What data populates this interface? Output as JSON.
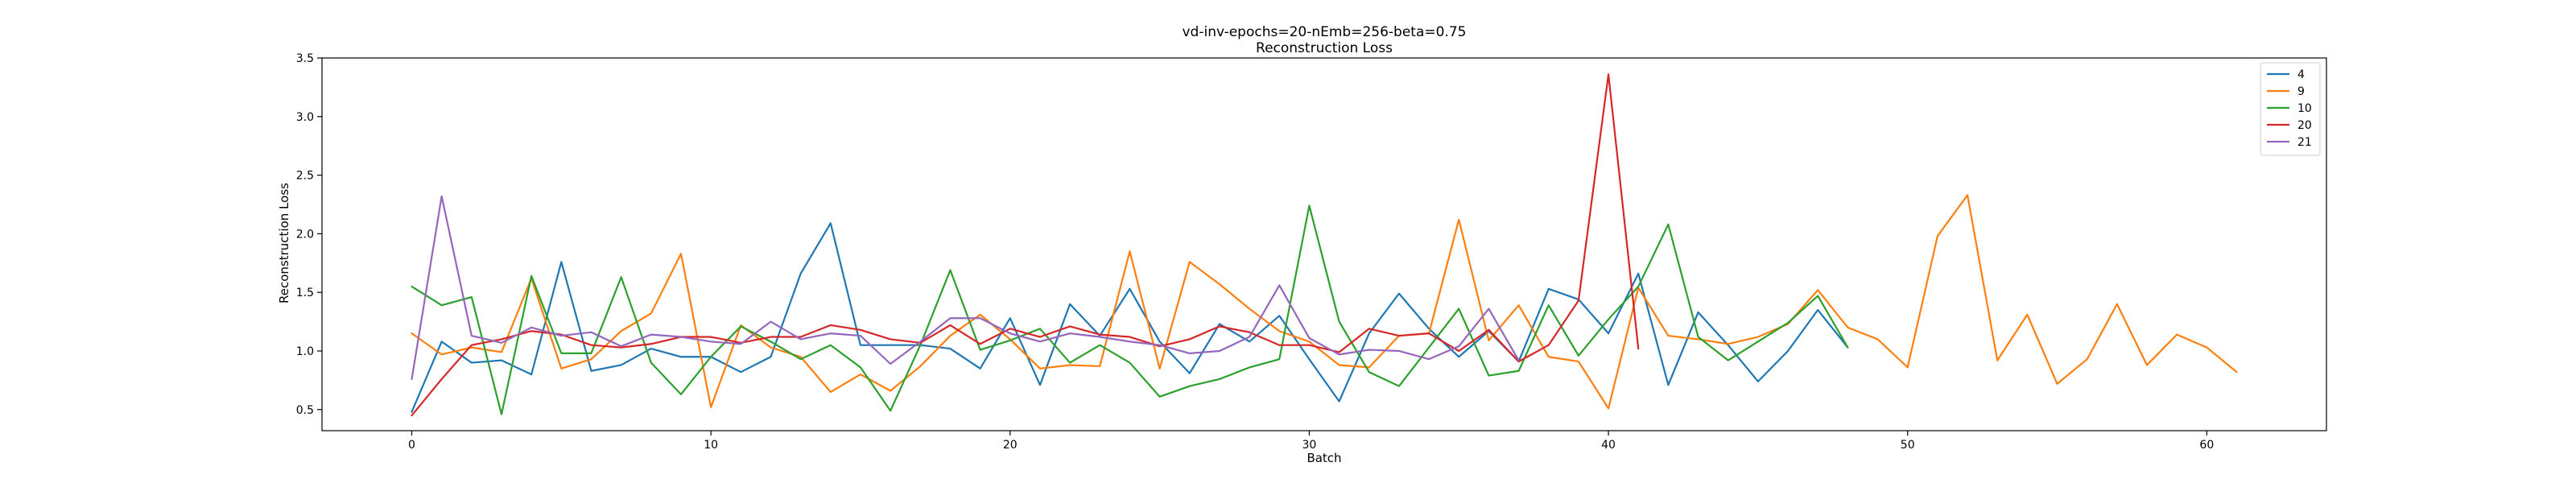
{
  "chart_data": {
    "type": "line",
    "title": "vd-inv-epochs=20-nEmb=256-beta=0.75",
    "subtitle": "Reconstruction Loss",
    "xlabel": "Batch",
    "ylabel": "Reconstruction Loss",
    "xlim": [
      -3,
      64
    ],
    "ylim": [
      0.32,
      3.5
    ],
    "xticks": [
      0,
      10,
      20,
      30,
      40,
      50,
      60
    ],
    "yticks": [
      0.5,
      1.0,
      1.5,
      2.0,
      2.5,
      3.0,
      3.5
    ],
    "grid": false,
    "legend_position": "top-right",
    "series": [
      {
        "name": "4",
        "color": "#1f77b4",
        "values": [
          0.48,
          1.08,
          0.9,
          0.92,
          0.8,
          1.76,
          0.83,
          0.88,
          1.02,
          0.95,
          0.95,
          0.82,
          0.95,
          1.66,
          2.09,
          1.05,
          1.05,
          1.05,
          1.02,
          0.85,
          1.28,
          0.71,
          1.4,
          1.13,
          1.53,
          1.08,
          0.81,
          1.23,
          1.08,
          1.3,
          0.93,
          0.57,
          1.15,
          1.49,
          1.19,
          0.95,
          1.17,
          0.91,
          1.53,
          1.44,
          1.15,
          1.66,
          0.71,
          1.33,
          1.05,
          0.74,
          1.0,
          1.35,
          1.03
        ]
      },
      {
        "name": "9",
        "color": "#ff7f0e",
        "values": [
          1.15,
          0.97,
          1.03,
          0.99,
          1.62,
          0.85,
          0.93,
          1.17,
          1.32,
          1.83,
          0.52,
          1.22,
          1.03,
          0.95,
          0.65,
          0.8,
          0.66,
          0.87,
          1.13,
          1.31,
          1.1,
          0.85,
          0.88,
          0.87,
          1.85,
          0.85,
          1.76,
          1.57,
          1.36,
          1.17,
          1.08,
          0.88,
          0.86,
          1.13,
          1.15,
          2.12,
          1.09,
          1.39,
          0.95,
          0.91,
          0.51,
          1.54,
          1.13,
          1.1,
          1.06,
          1.12,
          1.23,
          1.52,
          1.2,
          1.1,
          0.86,
          1.98,
          2.33,
          0.92,
          1.31,
          0.72,
          0.93,
          1.4,
          0.88,
          1.14,
          1.03,
          0.82
        ]
      },
      {
        "name": "10",
        "color": "#2ca02c",
        "values": [
          1.55,
          1.39,
          1.46,
          0.46,
          1.64,
          0.98,
          0.98,
          1.63,
          0.9,
          0.63,
          0.95,
          1.21,
          1.08,
          0.93,
          1.05,
          0.86,
          0.49,
          1.05,
          1.69,
          1.01,
          1.09,
          1.19,
          0.9,
          1.05,
          0.9,
          0.61,
          0.7,
          0.76,
          0.86,
          0.93,
          2.24,
          1.25,
          0.82,
          0.7,
          1.03,
          1.36,
          0.79,
          0.83,
          1.39,
          0.96,
          1.27,
          1.55,
          2.08,
          1.12,
          0.92,
          1.08,
          1.24,
          1.47,
          1.03
        ]
      },
      {
        "name": "20",
        "color": "#d62728",
        "values": [
          0.45,
          0.76,
          1.05,
          1.1,
          1.17,
          1.14,
          1.05,
          1.03,
          1.06,
          1.12,
          1.12,
          1.07,
          1.12,
          1.12,
          1.22,
          1.18,
          1.1,
          1.07,
          1.22,
          1.06,
          1.19,
          1.12,
          1.21,
          1.14,
          1.12,
          1.04,
          1.1,
          1.21,
          1.16,
          1.05,
          1.05,
          0.99,
          1.19,
          1.13,
          1.15,
          1.0,
          1.18,
          0.91,
          1.05,
          1.43,
          3.36,
          1.02
        ]
      },
      {
        "name": "21",
        "color": "#9467bd",
        "values": [
          0.76,
          2.32,
          1.13,
          1.07,
          1.2,
          1.13,
          1.16,
          1.04,
          1.14,
          1.12,
          1.08,
          1.06,
          1.25,
          1.1,
          1.15,
          1.13,
          0.89,
          1.08,
          1.28,
          1.28,
          1.15,
          1.08,
          1.15,
          1.12,
          1.08,
          1.05,
          0.98,
          1.0,
          1.12,
          1.56,
          1.11,
          0.97,
          1.01,
          1.0,
          0.93,
          1.04,
          1.36,
          0.92
        ]
      }
    ]
  }
}
